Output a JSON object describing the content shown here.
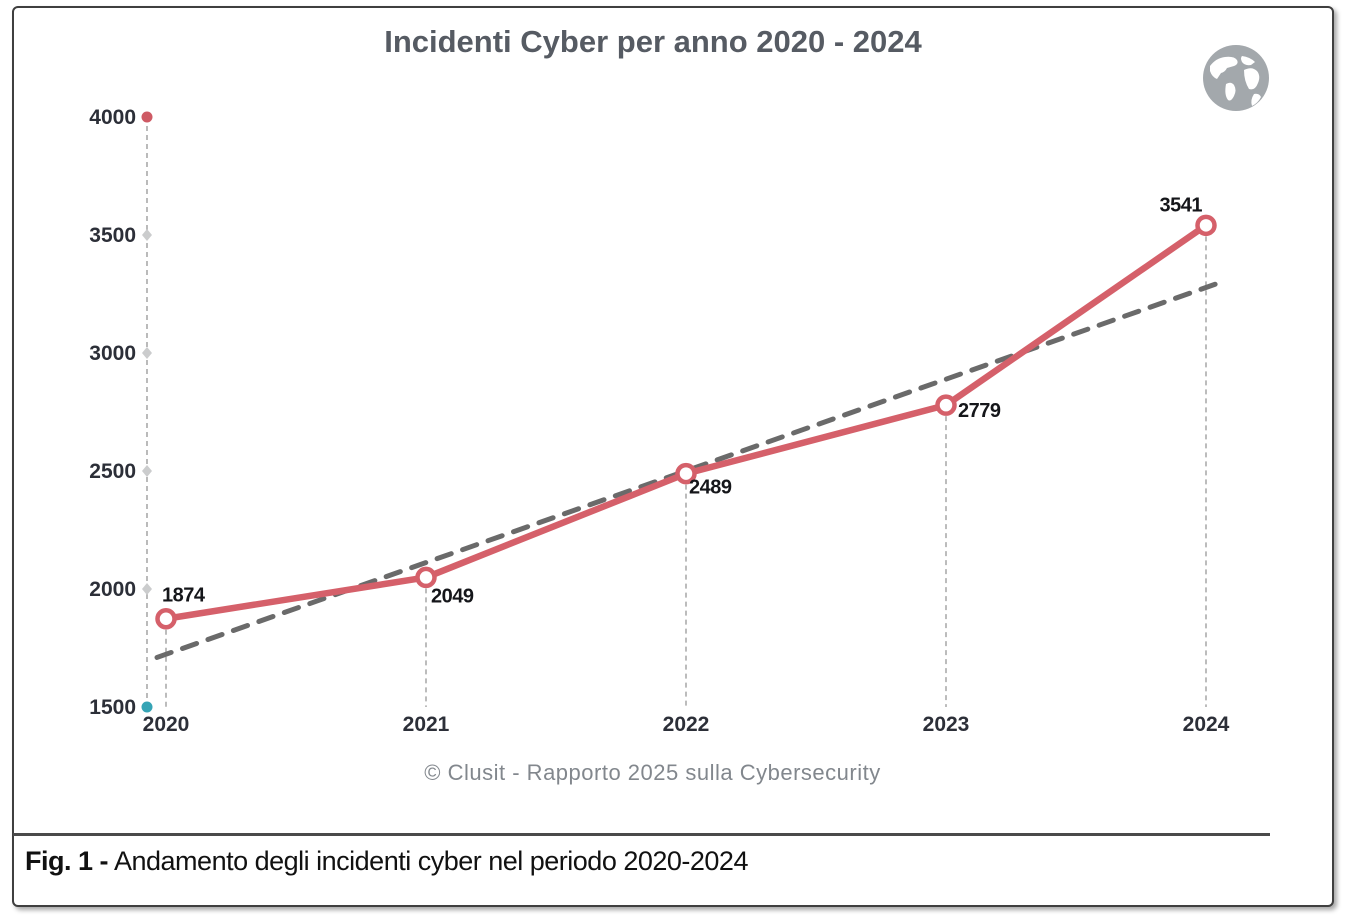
{
  "title": "Incidenti Cyber per anno 2020 - 2024",
  "icons": {
    "globe": "world-globe"
  },
  "chart_data": {
    "type": "line",
    "title": "Incidenti Cyber per anno 2020 - 2024",
    "categories": [
      "2020",
      "2021",
      "2022",
      "2023",
      "2024"
    ],
    "series": [
      {
        "name": "Incidenti cyber",
        "values": [
          1874,
          2049,
          2489,
          2779,
          3541
        ],
        "color": "#d5606a"
      }
    ],
    "data_labels_visible": true,
    "trend": {
      "style": "dashed",
      "color": "#6a6a6a",
      "start_value": 1710,
      "end_value": 3300
    },
    "ylim": [
      1500,
      4000
    ],
    "y_ticks": [
      4000,
      3500,
      3000,
      2500,
      2000,
      1500
    ],
    "grid": false,
    "legend": false,
    "axis_style": {
      "axis_line_color": "#aaaaaa",
      "tick_diamond_color": "#cbcccd",
      "top_dot_color": "#ce5a64",
      "bottom_dot_color": "#35a4b5",
      "tick_label_color": "#2c2f38",
      "data_label_color": "#15161a"
    }
  },
  "footer": {
    "credit": "© Clusit - Rapporto 2025 sulla Cybersecurity"
  },
  "caption": {
    "prefix": "Fig. 1 -",
    "text": "Andamento degli incidenti cyber nel periodo 2020-2024"
  }
}
